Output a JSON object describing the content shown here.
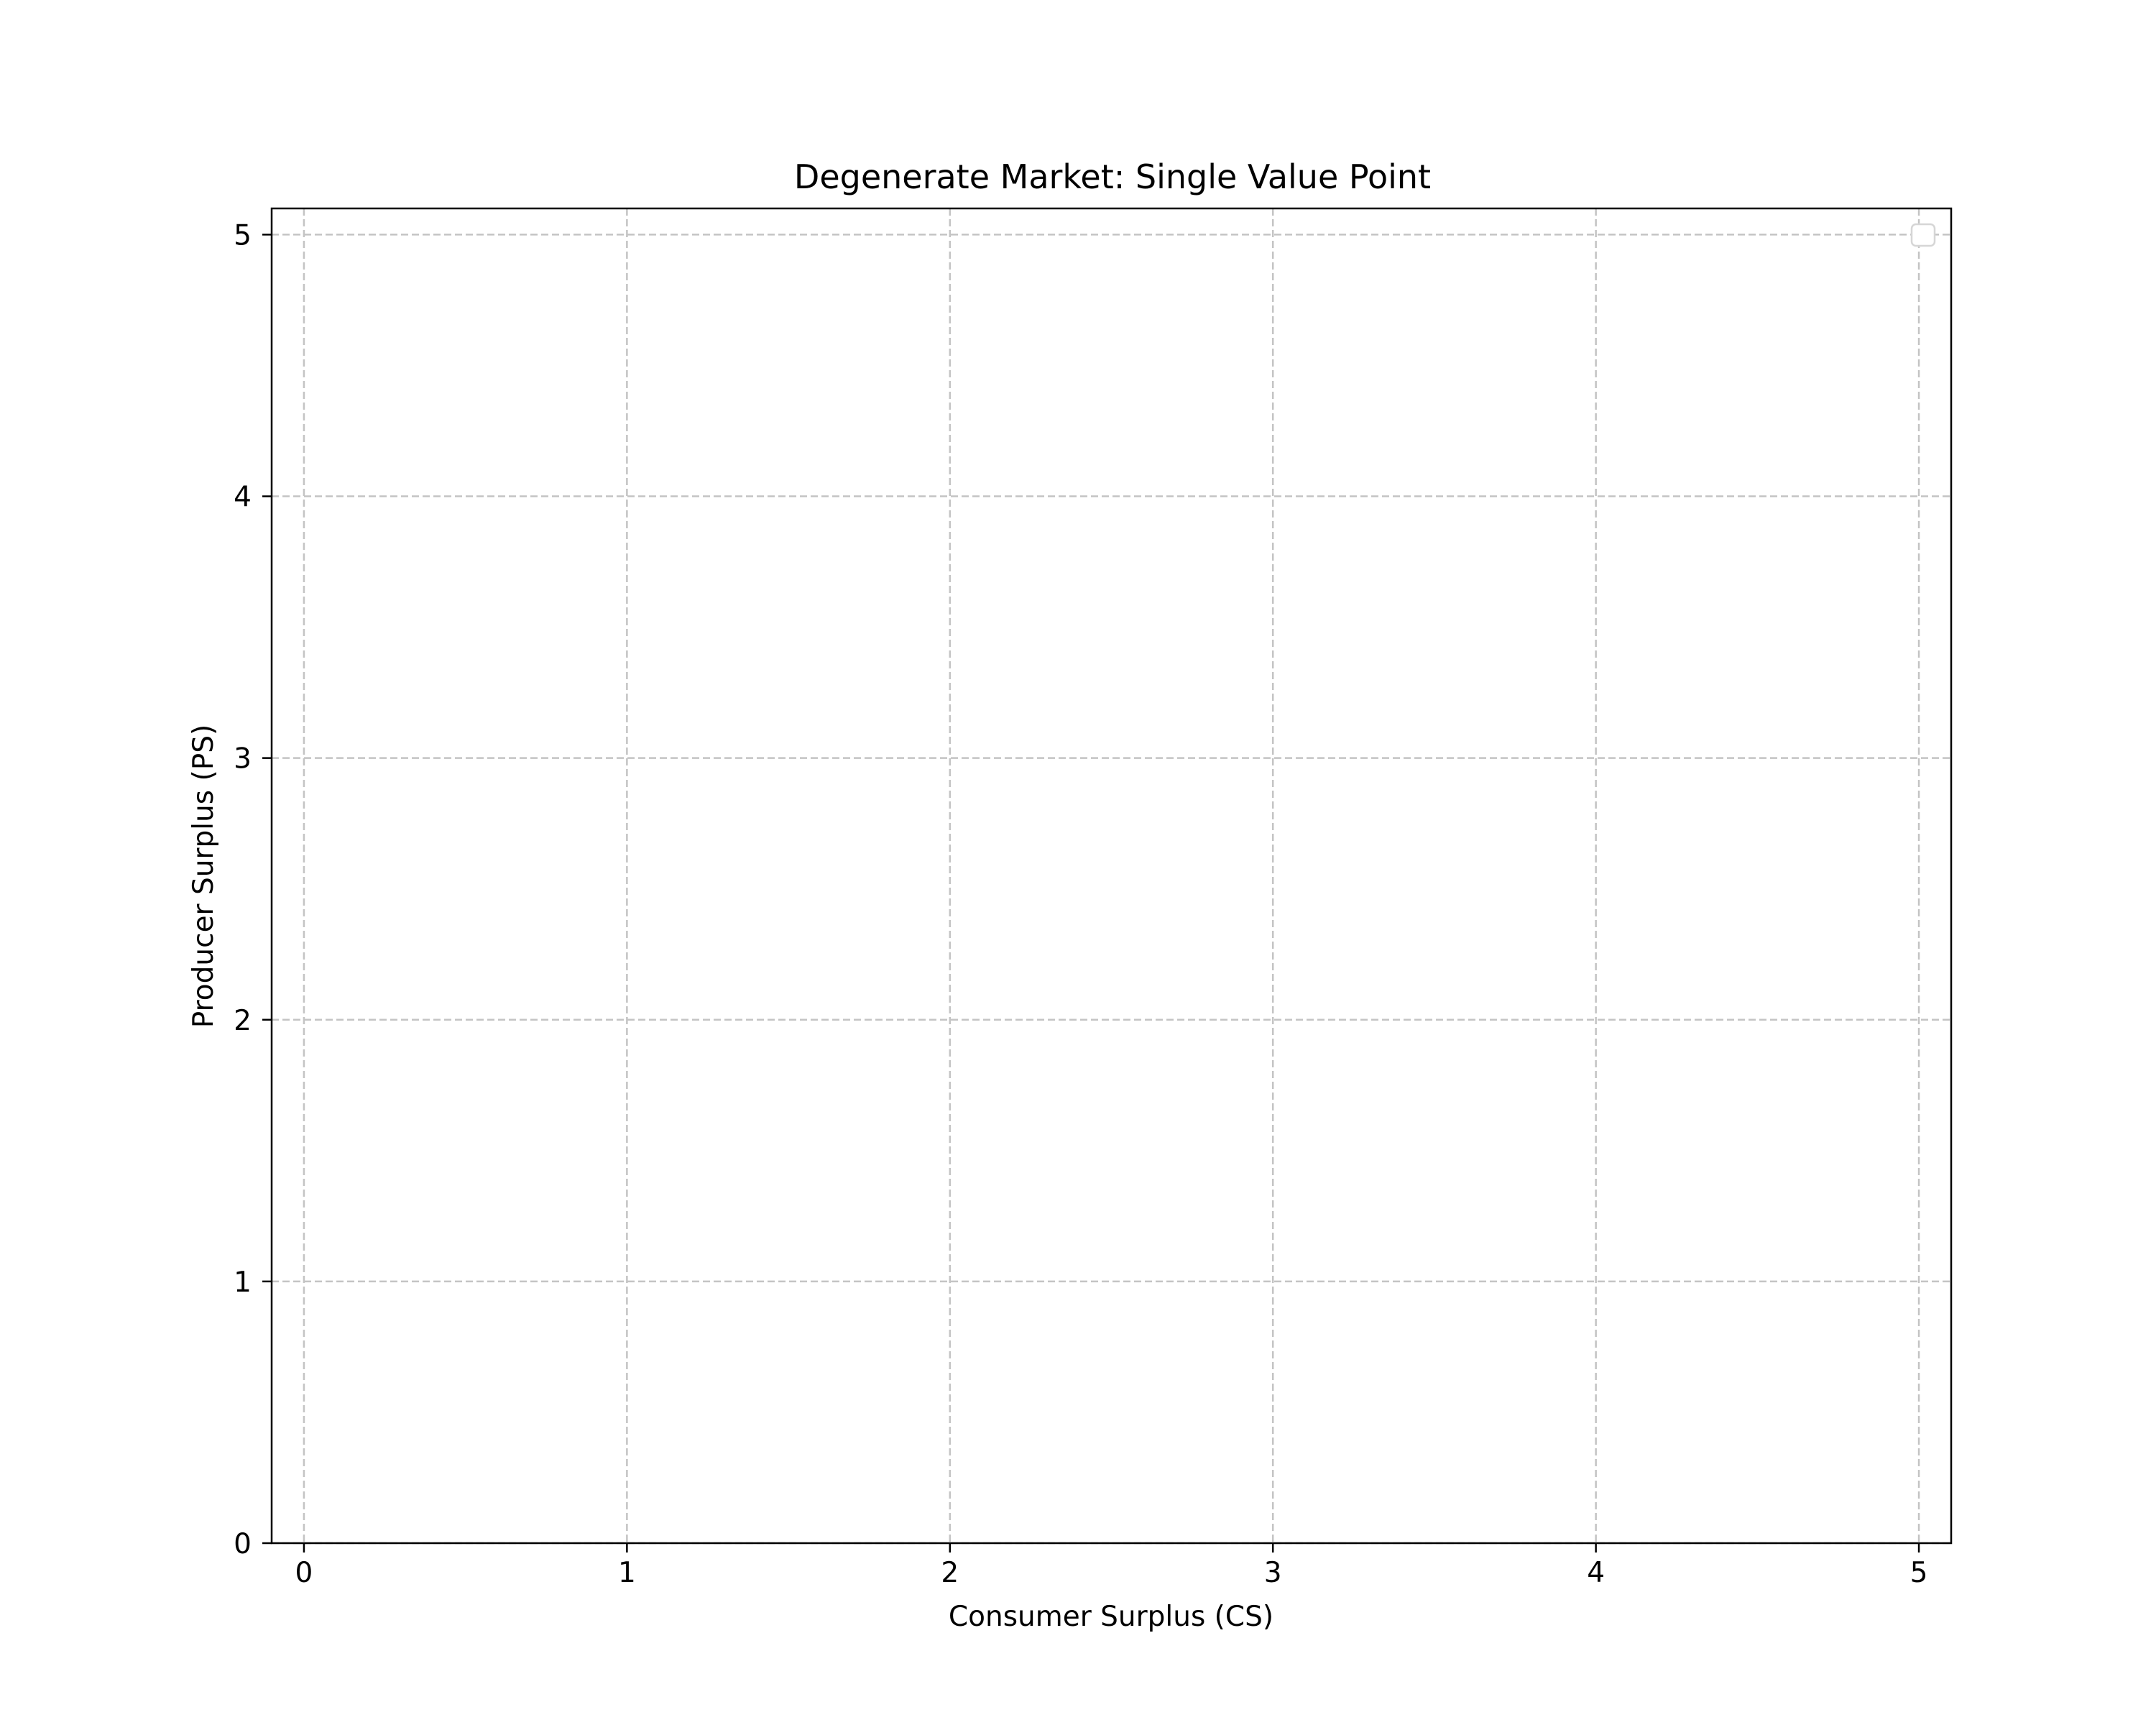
{
  "chart_data": {
    "type": "scatter",
    "title": "Degenerate Market: Single Value Point",
    "xlabel": "Consumer Surplus (CS)",
    "ylabel": "Producer Surplus (PS)",
    "xlim": [
      -0.1,
      5.1
    ],
    "ylim": [
      0,
      5.1
    ],
    "xticks": [
      0,
      1,
      2,
      3,
      4,
      5
    ],
    "yticks": [
      0,
      1,
      2,
      3,
      4,
      5
    ],
    "xtick_labels": [
      "0",
      "1",
      "2",
      "3",
      "4",
      "5"
    ],
    "ytick_labels": [
      "0",
      "1",
      "2",
      "3",
      "4",
      "5"
    ],
    "grid": true,
    "legend": {
      "location": "top-right",
      "entries": []
    },
    "series": [],
    "colors": {
      "grid": "#c4c4c4",
      "axes": "#000000",
      "legend_border": "#d6d6d6"
    }
  }
}
